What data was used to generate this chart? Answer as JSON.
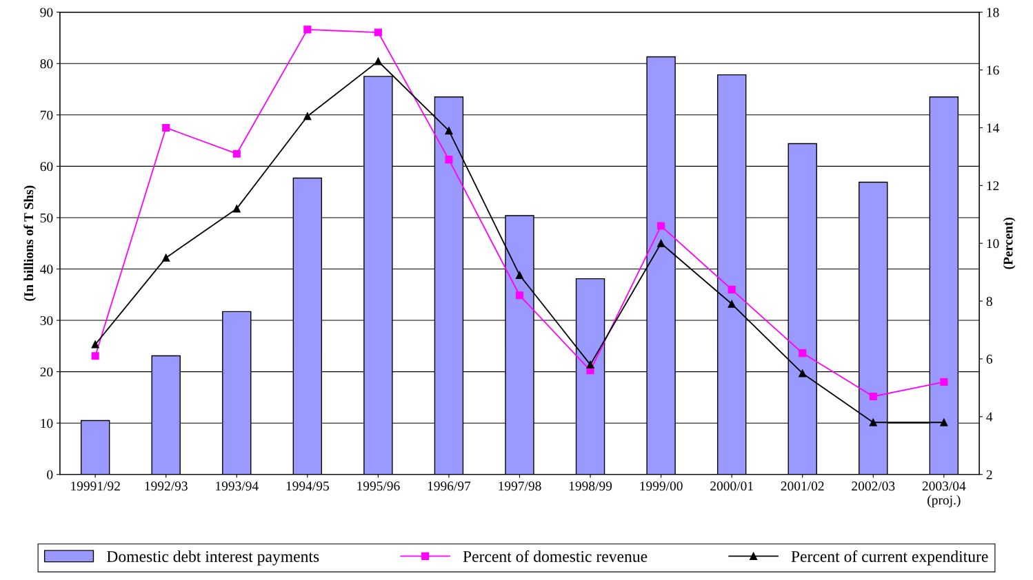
{
  "chart_data": {
    "type": "bar",
    "ylabel": "(In billions of T Shs)",
    "y2label": "(Percent)",
    "categories": [
      "19991/92",
      "1992/93",
      "1993/94",
      "1994/95",
      "1995/96",
      "1996/97",
      "1997/98",
      "1998/99",
      "1999/00",
      "2000/01",
      "2001/02",
      "2002/03",
      "2003/04\n(proj.)"
    ],
    "series": [
      {
        "name": "Domestic debt interest payments",
        "color": "#9999ff",
        "values": [
          10.5,
          23.1,
          31.7,
          57.7,
          77.5,
          73.5,
          50.4,
          38.1,
          81.3,
          77.8,
          64.4,
          56.9,
          73.5
        ]
      },
      {
        "name": "Percent of domestic revenue",
        "type": "line",
        "axis": "y2",
        "color": "#ff00ff",
        "marker": "square",
        "values": [
          6.1,
          14.0,
          13.1,
          17.4,
          17.3,
          12.9,
          8.2,
          5.6,
          10.6,
          8.4,
          6.2,
          4.7,
          5.2
        ]
      },
      {
        "name": "Percent of current expenditure",
        "type": "line",
        "axis": "y2",
        "color": "#000000",
        "marker": "triangle",
        "values": [
          6.5,
          9.5,
          11.2,
          14.4,
          16.3,
          13.9,
          8.9,
          5.8,
          10.0,
          7.9,
          5.5,
          3.8,
          3.8
        ]
      }
    ],
    "ylim": [
      0,
      90
    ],
    "yticks": [
      0,
      10,
      20,
      30,
      40,
      50,
      60,
      70,
      80,
      90
    ],
    "y2lim": [
      2,
      18
    ],
    "y2ticks": [
      2,
      4,
      6,
      8,
      10,
      12,
      14,
      16,
      18
    ],
    "grid": "y",
    "legend": "bottom"
  }
}
